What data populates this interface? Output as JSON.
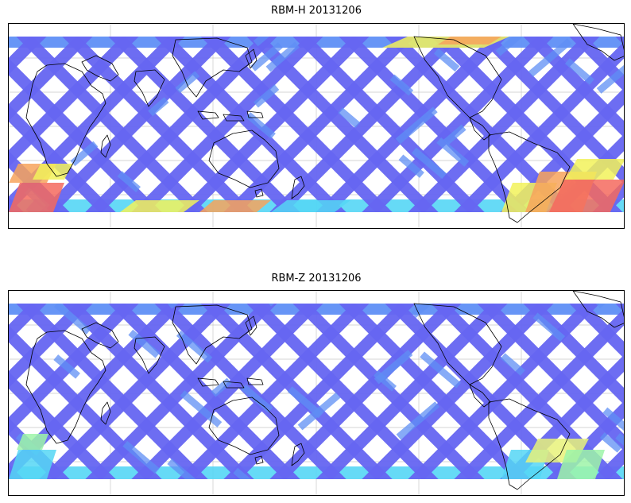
{
  "panels": [
    {
      "title": "RBM-H 20131206",
      "colors": {
        "base": "#6666f2",
        "light": "#5f8ff5",
        "cyan": "#55d6f5",
        "yellow": "#f2f25a",
        "orange": "#f7a35c",
        "red": "#f56a5e"
      }
    },
    {
      "title": "RBM-Z 20131206",
      "colors": {
        "base": "#6666f2",
        "light": "#5f8ff5",
        "cyan": "#55d6f5",
        "yellow": "#e8f27a",
        "orange": "#9df5a8",
        "red": "#55d6f5"
      }
    }
  ],
  "map": {
    "projection": "equirectangular",
    "gridlines": true,
    "coastlines": true
  }
}
